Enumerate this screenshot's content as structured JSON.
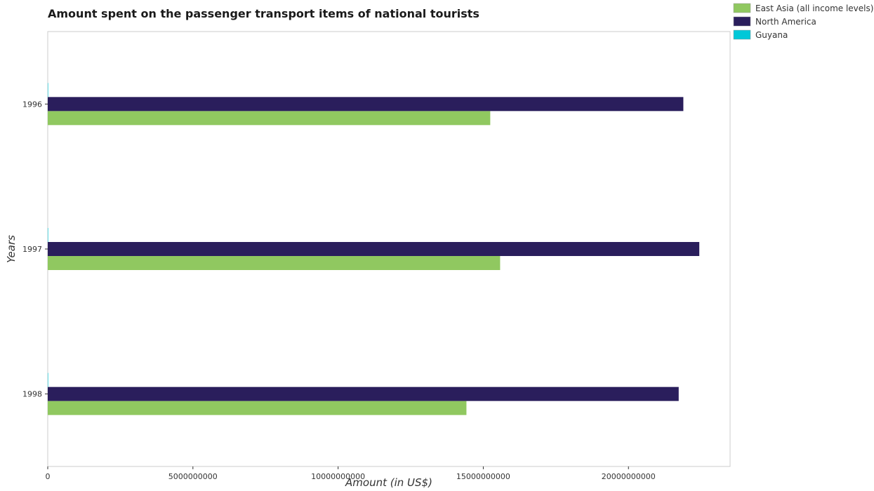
{
  "colors": {
    "east_asia": "#90c860",
    "north_america": "#2a1e5c",
    "guyana": "#00c8d8"
  },
  "chart_data": {
    "type": "bar",
    "orientation": "horizontal",
    "title": "Amount spent on the passenger transport items of national tourists",
    "xlabel": "Amount (in US$)",
    "ylabel": "Years",
    "categories": [
      "1996",
      "1997",
      "1998"
    ],
    "xlim": [
      0,
      23500000000
    ],
    "xticks": [
      0,
      5000000000,
      10000000000,
      15000000000,
      20000000000
    ],
    "xtick_labels": [
      "0",
      "5000000000",
      "10000000000",
      "15000000000",
      "20000000000"
    ],
    "grid": false,
    "legend_position": "top-right",
    "series": [
      {
        "name": "East Asia (all income levels)",
        "color_key": "east_asia",
        "values": [
          15240000000,
          15580000000,
          14420000000
        ]
      },
      {
        "name": "North America",
        "color_key": "north_america",
        "values": [
          21890000000,
          22440000000,
          21730000000
        ]
      },
      {
        "name": "Guyana",
        "color_key": "guyana",
        "values": [
          10000000,
          10000000,
          10000000
        ]
      }
    ]
  }
}
